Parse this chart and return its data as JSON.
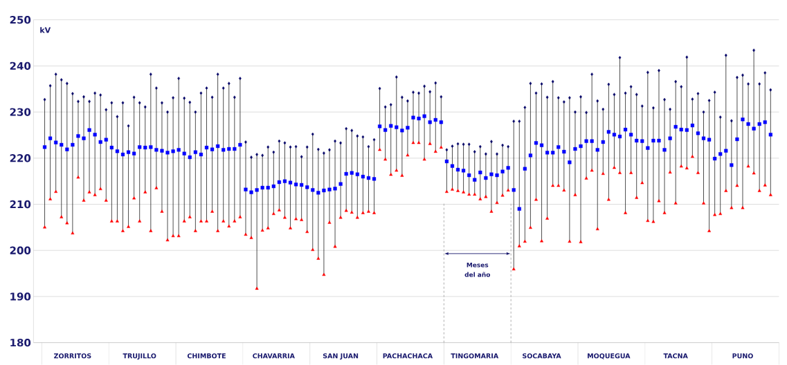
{
  "chart_data": {
    "type": "scatter",
    "ylabel": "kV",
    "grid": "y",
    "categories": [
      null,
      null,
      null,
      null,
      null,
      "ZORRITOS",
      null,
      null,
      null,
      null,
      null,
      null,
      null,
      null,
      null,
      null,
      null,
      "TRUJILLO",
      null,
      null,
      null,
      null,
      null,
      null,
      null,
      null,
      null,
      null,
      null,
      "CHIMBOTE",
      null,
      null,
      null,
      null,
      null,
      null,
      null,
      null,
      null,
      null,
      null,
      "CHAVARRIA",
      null,
      null,
      null,
      null,
      null,
      null,
      null,
      null,
      null,
      null,
      null,
      "SAN JUAN",
      null,
      null,
      null,
      null,
      null,
      null,
      null,
      null,
      null,
      null,
      null,
      "PACHACHACA",
      null,
      null,
      null,
      null,
      null,
      null,
      null,
      null,
      null,
      null,
      null,
      "TINGOMARIA",
      null,
      null,
      null,
      null,
      null,
      null,
      null,
      null,
      null,
      null,
      null,
      "SOCABAYA",
      null,
      null,
      null,
      null,
      null,
      null,
      null,
      null,
      null,
      null,
      null,
      "MOQUEGUA",
      null,
      null,
      null,
      null,
      null,
      null,
      null,
      null,
      null,
      null,
      null,
      "TACNA",
      null,
      null,
      null,
      null,
      null,
      null,
      null,
      null,
      null,
      null,
      null,
      "PUNO",
      null,
      null,
      null,
      null,
      null,
      null
    ],
    "ylim": [
      180,
      250
    ],
    "yticks": [
      180,
      190,
      200,
      210,
      220,
      230,
      240,
      250
    ],
    "annotations": [
      "Meses del año"
    ],
    "series": [
      {
        "color": "#000066",
        "marker": "diamond",
        "values": [
          232.7,
          235.7,
          238.2,
          237.0,
          236.2,
          234.0,
          232.3,
          233.3,
          232.3,
          234.1,
          233.7,
          230.5,
          232.0,
          229.0,
          232.0,
          227.0,
          233.2,
          232.0,
          231.1,
          238.2,
          235.2,
          232.0,
          230.0,
          233.1,
          237.3,
          233.0,
          232.1,
          230.0,
          234.1,
          235.2,
          233.2,
          238.2,
          235.2,
          236.2,
          233.2,
          237.3,
          223.5,
          220.2,
          220.8,
          220.6,
          222.4,
          221.3,
          223.7,
          223.3,
          222.4,
          222.5,
          220.3,
          222.4,
          225.2,
          221.9,
          221.1,
          221.8,
          223.7,
          223.3,
          226.4,
          226.0,
          224.8,
          224.6,
          222.5,
          224.0,
          235.1,
          231.1,
          231.6,
          237.6,
          233.2,
          232.4,
          234.3,
          234.1,
          235.6,
          234.4,
          236.3,
          233.3,
          221.8,
          222.6,
          223.1,
          223.0,
          223.0,
          221.4,
          222.5,
          220.9,
          223.6,
          220.9,
          222.8,
          222.5,
          228.0,
          228.0,
          231.0,
          236.2,
          234.1,
          236.1,
          233.2,
          236.6,
          233.1,
          232.2,
          233.1,
          230.0,
          233.3,
          229.9,
          238.2,
          232.4,
          230.6,
          236.0,
          233.8,
          241.8,
          234.1,
          235.5,
          233.8,
          231.3,
          238.6,
          230.9,
          239.0,
          232.7,
          230.6,
          236.6,
          235.5,
          241.9,
          232.8,
          234.0,
          230.0,
          232.5,
          234.3,
          228.9,
          242.3,
          228.1,
          237.5,
          238.0,
          236.1,
          243.4,
          236.1,
          238.5,
          234.8,
          null
        ]
      },
      {
        "color": "#0000ff",
        "marker": "square",
        "values": [
          222.4,
          224.3,
          223.4,
          222.9,
          221.9,
          222.9,
          224.8,
          224.3,
          226.1,
          225.1,
          223.5,
          224.0,
          222.3,
          221.5,
          220.8,
          221.3,
          221.0,
          222.4,
          222.3,
          222.4,
          221.8,
          221.6,
          221.2,
          221.5,
          221.8,
          221.0,
          220.2,
          221.3,
          220.8,
          222.3,
          221.9,
          222.6,
          221.8,
          222.0,
          222.0,
          222.9,
          213.2,
          212.6,
          213.1,
          213.6,
          213.6,
          213.9,
          214.8,
          215.0,
          214.7,
          214.3,
          214.2,
          213.7,
          213.1,
          212.5,
          213.0,
          213.2,
          213.4,
          214.4,
          216.6,
          216.8,
          216.5,
          216.0,
          215.7,
          215.5,
          226.9,
          226.1,
          227.0,
          226.7,
          226.0,
          226.6,
          228.8,
          228.6,
          229.1,
          227.8,
          228.3,
          227.8,
          219.3,
          218.3,
          217.5,
          217.3,
          216.3,
          215.3,
          216.9,
          215.7,
          216.5,
          216.3,
          217.1,
          217.9,
          213.1,
          209.0,
          217.7,
          220.6,
          223.3,
          222.8,
          221.2,
          221.2,
          222.4,
          221.4,
          219.1,
          222.0,
          222.6,
          223.7,
          223.7,
          221.8,
          223.5,
          225.7,
          225.1,
          224.7,
          226.2,
          225.1,
          223.8,
          223.7,
          222.2,
          223.8,
          223.8,
          221.8,
          224.3,
          226.8,
          226.2,
          226.1,
          227.1,
          225.4,
          224.3,
          224.0,
          219.9,
          220.9,
          221.6,
          218.5,
          224.1,
          228.4,
          227.4,
          226.4,
          227.4,
          227.8,
          225.1,
          null
        ]
      },
      {
        "color": "#ff0000",
        "marker": "triangle",
        "values": [
          205.0,
          211.1,
          212.7,
          207.2,
          205.9,
          203.7,
          215.8,
          210.8,
          212.6,
          212.0,
          213.3,
          210.8,
          206.3,
          206.3,
          204.2,
          205.1,
          211.3,
          206.3,
          212.6,
          204.2,
          213.5,
          208.4,
          202.2,
          203.1,
          203.1,
          206.3,
          207.2,
          204.2,
          206.3,
          206.3,
          208.4,
          204.2,
          206.3,
          205.2,
          206.3,
          207.2,
          203.4,
          202.7,
          191.7,
          204.3,
          204.8,
          207.9,
          208.7,
          207.1,
          204.8,
          206.8,
          206.6,
          204.0,
          200.1,
          198.2,
          194.7,
          206.0,
          200.8,
          207.1,
          208.6,
          208.2,
          207.1,
          208.1,
          208.4,
          208.1,
          221.8,
          219.7,
          216.4,
          217.3,
          216.2,
          220.6,
          223.3,
          223.3,
          219.7,
          223.1,
          221.4,
          222.3,
          212.7,
          213.2,
          212.9,
          212.6,
          212.1,
          212.1,
          211.1,
          211.6,
          208.4,
          210.3,
          211.9,
          213.0,
          195.9,
          200.9,
          201.9,
          204.9,
          211.0,
          202.0,
          206.9,
          214.0,
          214.0,
          213.0,
          201.9,
          212.0,
          201.8,
          215.6,
          217.3,
          204.6,
          216.6,
          211.0,
          217.9,
          216.8,
          208.1,
          216.8,
          211.4,
          214.6,
          206.4,
          206.2,
          210.7,
          208.1,
          216.9,
          210.2,
          218.2,
          217.8,
          220.3,
          216.8,
          210.2,
          204.2,
          207.7,
          207.9,
          212.9,
          209.2,
          214.0,
          209.2,
          218.2,
          216.7,
          212.9,
          214.1,
          212.0,
          null
        ]
      }
    ]
  }
}
